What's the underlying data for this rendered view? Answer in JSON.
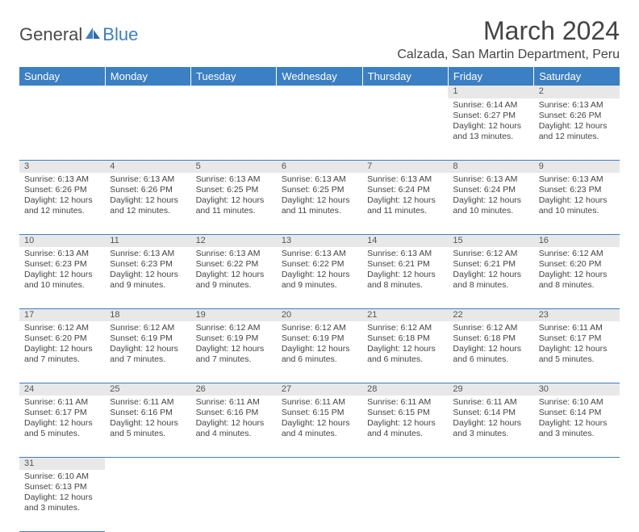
{
  "logo": {
    "text1": "General",
    "text2": "Blue"
  },
  "title": "March 2024",
  "location": "Calzada, San Martin Department, Peru",
  "colors": {
    "header_bg": "#3b7fc4",
    "header_text": "#ffffff",
    "daynum_bg": "#e8e8e8",
    "row_border": "#3b7fc4",
    "text": "#444444",
    "logo_blue": "#3b7fc4"
  },
  "weekdays": [
    "Sunday",
    "Monday",
    "Tuesday",
    "Wednesday",
    "Thursday",
    "Friday",
    "Saturday"
  ],
  "weeks": [
    [
      null,
      null,
      null,
      null,
      null,
      {
        "d": "1",
        "sr": "Sunrise: 6:14 AM",
        "ss": "Sunset: 6:27 PM",
        "dl1": "Daylight: 12 hours",
        "dl2": "and 13 minutes."
      },
      {
        "d": "2",
        "sr": "Sunrise: 6:13 AM",
        "ss": "Sunset: 6:26 PM",
        "dl1": "Daylight: 12 hours",
        "dl2": "and 12 minutes."
      }
    ],
    [
      {
        "d": "3",
        "sr": "Sunrise: 6:13 AM",
        "ss": "Sunset: 6:26 PM",
        "dl1": "Daylight: 12 hours",
        "dl2": "and 12 minutes."
      },
      {
        "d": "4",
        "sr": "Sunrise: 6:13 AM",
        "ss": "Sunset: 6:26 PM",
        "dl1": "Daylight: 12 hours",
        "dl2": "and 12 minutes."
      },
      {
        "d": "5",
        "sr": "Sunrise: 6:13 AM",
        "ss": "Sunset: 6:25 PM",
        "dl1": "Daylight: 12 hours",
        "dl2": "and 11 minutes."
      },
      {
        "d": "6",
        "sr": "Sunrise: 6:13 AM",
        "ss": "Sunset: 6:25 PM",
        "dl1": "Daylight: 12 hours",
        "dl2": "and 11 minutes."
      },
      {
        "d": "7",
        "sr": "Sunrise: 6:13 AM",
        "ss": "Sunset: 6:24 PM",
        "dl1": "Daylight: 12 hours",
        "dl2": "and 11 minutes."
      },
      {
        "d": "8",
        "sr": "Sunrise: 6:13 AM",
        "ss": "Sunset: 6:24 PM",
        "dl1": "Daylight: 12 hours",
        "dl2": "and 10 minutes."
      },
      {
        "d": "9",
        "sr": "Sunrise: 6:13 AM",
        "ss": "Sunset: 6:23 PM",
        "dl1": "Daylight: 12 hours",
        "dl2": "and 10 minutes."
      }
    ],
    [
      {
        "d": "10",
        "sr": "Sunrise: 6:13 AM",
        "ss": "Sunset: 6:23 PM",
        "dl1": "Daylight: 12 hours",
        "dl2": "and 10 minutes."
      },
      {
        "d": "11",
        "sr": "Sunrise: 6:13 AM",
        "ss": "Sunset: 6:23 PM",
        "dl1": "Daylight: 12 hours",
        "dl2": "and 9 minutes."
      },
      {
        "d": "12",
        "sr": "Sunrise: 6:13 AM",
        "ss": "Sunset: 6:22 PM",
        "dl1": "Daylight: 12 hours",
        "dl2": "and 9 minutes."
      },
      {
        "d": "13",
        "sr": "Sunrise: 6:13 AM",
        "ss": "Sunset: 6:22 PM",
        "dl1": "Daylight: 12 hours",
        "dl2": "and 9 minutes."
      },
      {
        "d": "14",
        "sr": "Sunrise: 6:13 AM",
        "ss": "Sunset: 6:21 PM",
        "dl1": "Daylight: 12 hours",
        "dl2": "and 8 minutes."
      },
      {
        "d": "15",
        "sr": "Sunrise: 6:12 AM",
        "ss": "Sunset: 6:21 PM",
        "dl1": "Daylight: 12 hours",
        "dl2": "and 8 minutes."
      },
      {
        "d": "16",
        "sr": "Sunrise: 6:12 AM",
        "ss": "Sunset: 6:20 PM",
        "dl1": "Daylight: 12 hours",
        "dl2": "and 8 minutes."
      }
    ],
    [
      {
        "d": "17",
        "sr": "Sunrise: 6:12 AM",
        "ss": "Sunset: 6:20 PM",
        "dl1": "Daylight: 12 hours",
        "dl2": "and 7 minutes."
      },
      {
        "d": "18",
        "sr": "Sunrise: 6:12 AM",
        "ss": "Sunset: 6:19 PM",
        "dl1": "Daylight: 12 hours",
        "dl2": "and 7 minutes."
      },
      {
        "d": "19",
        "sr": "Sunrise: 6:12 AM",
        "ss": "Sunset: 6:19 PM",
        "dl1": "Daylight: 12 hours",
        "dl2": "and 7 minutes."
      },
      {
        "d": "20",
        "sr": "Sunrise: 6:12 AM",
        "ss": "Sunset: 6:19 PM",
        "dl1": "Daylight: 12 hours",
        "dl2": "and 6 minutes."
      },
      {
        "d": "21",
        "sr": "Sunrise: 6:12 AM",
        "ss": "Sunset: 6:18 PM",
        "dl1": "Daylight: 12 hours",
        "dl2": "and 6 minutes."
      },
      {
        "d": "22",
        "sr": "Sunrise: 6:12 AM",
        "ss": "Sunset: 6:18 PM",
        "dl1": "Daylight: 12 hours",
        "dl2": "and 6 minutes."
      },
      {
        "d": "23",
        "sr": "Sunrise: 6:11 AM",
        "ss": "Sunset: 6:17 PM",
        "dl1": "Daylight: 12 hours",
        "dl2": "and 5 minutes."
      }
    ],
    [
      {
        "d": "24",
        "sr": "Sunrise: 6:11 AM",
        "ss": "Sunset: 6:17 PM",
        "dl1": "Daylight: 12 hours",
        "dl2": "and 5 minutes."
      },
      {
        "d": "25",
        "sr": "Sunrise: 6:11 AM",
        "ss": "Sunset: 6:16 PM",
        "dl1": "Daylight: 12 hours",
        "dl2": "and 5 minutes."
      },
      {
        "d": "26",
        "sr": "Sunrise: 6:11 AM",
        "ss": "Sunset: 6:16 PM",
        "dl1": "Daylight: 12 hours",
        "dl2": "and 4 minutes."
      },
      {
        "d": "27",
        "sr": "Sunrise: 6:11 AM",
        "ss": "Sunset: 6:15 PM",
        "dl1": "Daylight: 12 hours",
        "dl2": "and 4 minutes."
      },
      {
        "d": "28",
        "sr": "Sunrise: 6:11 AM",
        "ss": "Sunset: 6:15 PM",
        "dl1": "Daylight: 12 hours",
        "dl2": "and 4 minutes."
      },
      {
        "d": "29",
        "sr": "Sunrise: 6:11 AM",
        "ss": "Sunset: 6:14 PM",
        "dl1": "Daylight: 12 hours",
        "dl2": "and 3 minutes."
      },
      {
        "d": "30",
        "sr": "Sunrise: 6:10 AM",
        "ss": "Sunset: 6:14 PM",
        "dl1": "Daylight: 12 hours",
        "dl2": "and 3 minutes."
      }
    ],
    [
      {
        "d": "31",
        "sr": "Sunrise: 6:10 AM",
        "ss": "Sunset: 6:13 PM",
        "dl1": "Daylight: 12 hours",
        "dl2": "and 3 minutes."
      },
      null,
      null,
      null,
      null,
      null,
      null
    ]
  ]
}
